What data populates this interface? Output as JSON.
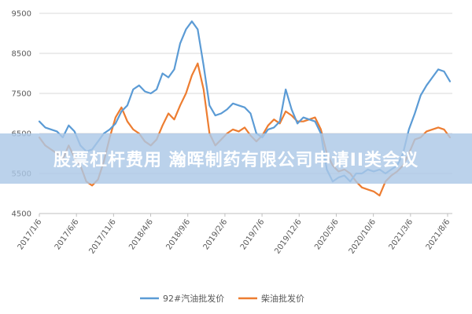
{
  "banner": {
    "title": "股票杠杆费用 瀚晖制药有限公司申请II类会议"
  },
  "colors": {
    "series_92": "#5b9bd5",
    "series_diesel": "#ed7d31",
    "grid": "#d9d9d9",
    "banner": "#acc8e6"
  },
  "chart_data": {
    "type": "line",
    "title": "",
    "xlabel": "",
    "ylabel": "",
    "ylim": [
      4500,
      9500
    ],
    "yticks": [
      4500,
      5500,
      6500,
      7500,
      8500,
      9500
    ],
    "grid": "horizontal",
    "legend": "bottom-center",
    "x_tick_labels": [
      "2017/1/6",
      "2017/6/6",
      "2017/11/6",
      "2018/4/6",
      "2018/9/6",
      "2019/2/6",
      "2019/7/6",
      "2019/12/6",
      "2020/5/6",
      "2020/10/6",
      "2021/3/6",
      "2021/8/6"
    ],
    "series": [
      {
        "name": "92#汽油批发价",
        "values": [
          6800,
          6650,
          6600,
          6550,
          6400,
          6700,
          6550,
          6200,
          6050,
          6100,
          6300,
          6500,
          6600,
          6750,
          7050,
          7200,
          7600,
          7700,
          7550,
          7500,
          7600,
          8000,
          7900,
          8100,
          8750,
          9100,
          9300,
          9100,
          8200,
          7200,
          6950,
          7000,
          7100,
          7250,
          7200,
          7150,
          7000,
          6500,
          6400,
          6600,
          6650,
          6800,
          7600,
          7100,
          6750,
          6900,
          6850,
          6800,
          6500,
          5600,
          5300,
          5400,
          5450,
          5300,
          5500,
          5500,
          5600,
          5550,
          5600,
          5500,
          5600,
          5700,
          6000,
          6600,
          7000,
          7450,
          7700,
          7900,
          8100,
          8050,
          7800
        ]
      },
      {
        "name": "柴油批发价",
        "values": [
          6400,
          6200,
          6100,
          6000,
          5850,
          6200,
          5900,
          5700,
          5300,
          5200,
          5350,
          5800,
          6400,
          6900,
          7150,
          6800,
          6600,
          6500,
          6300,
          6200,
          6350,
          6700,
          7000,
          6850,
          7200,
          7500,
          7950,
          8250,
          7600,
          6500,
          6200,
          6350,
          6500,
          6600,
          6550,
          6650,
          6450,
          6300,
          6450,
          6700,
          6850,
          6750,
          7050,
          6950,
          6800,
          6800,
          6850,
          6900,
          6600,
          6000,
          5700,
          5550,
          5600,
          5500,
          5300,
          5150,
          5100,
          5050,
          4950,
          5300,
          5450,
          5550,
          5700,
          6000,
          6350,
          6400,
          6550,
          6600,
          6650,
          6600,
          6400
        ]
      }
    ]
  }
}
